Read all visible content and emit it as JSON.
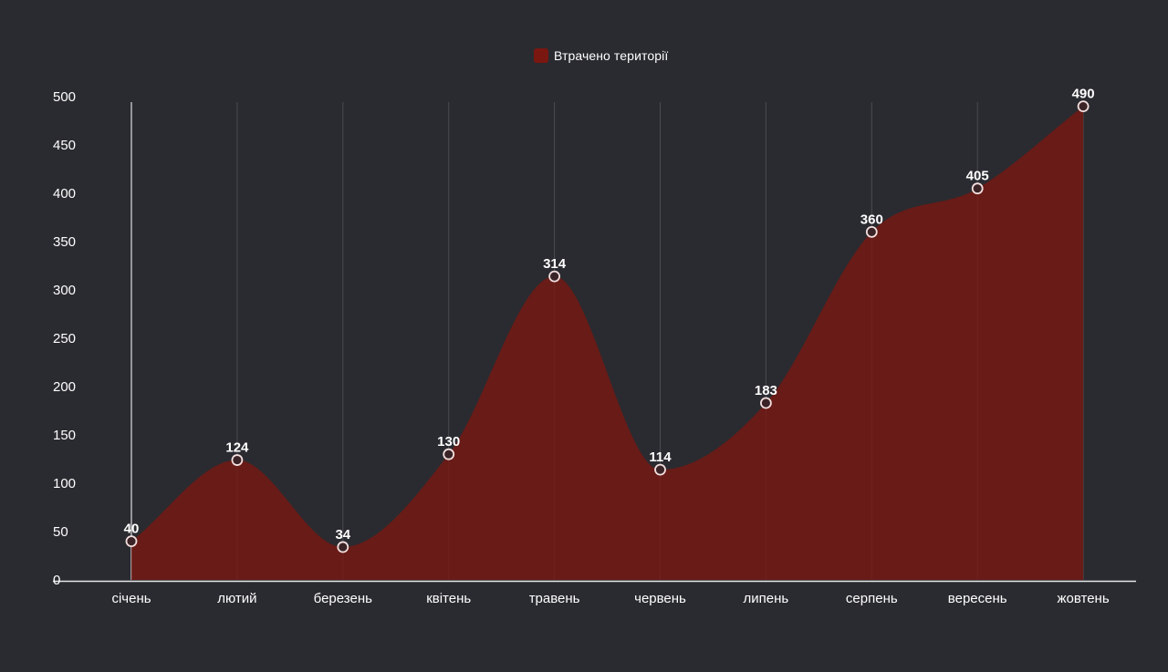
{
  "legend": {
    "label": "Втрачено території",
    "color": "#7a1711"
  },
  "chart_data": {
    "type": "area",
    "categories": [
      "січень",
      "лютий",
      "березень",
      "квітень",
      "травень",
      "червень",
      "липень",
      "серпень",
      "вересень",
      "жовтень"
    ],
    "series": [
      {
        "name": "Втрачено території",
        "values": [
          40,
          124,
          34,
          130,
          314,
          114,
          183,
          360,
          405,
          490
        ],
        "color": "#7a1711"
      }
    ],
    "yticks": [
      0,
      50,
      100,
      150,
      200,
      250,
      300,
      350,
      400,
      450,
      500
    ],
    "ylim": [
      0,
      500
    ],
    "data_labels": true,
    "grid": "vertical",
    "legend_position": "top-center",
    "title": "",
    "xlabel": "",
    "ylabel": ""
  }
}
